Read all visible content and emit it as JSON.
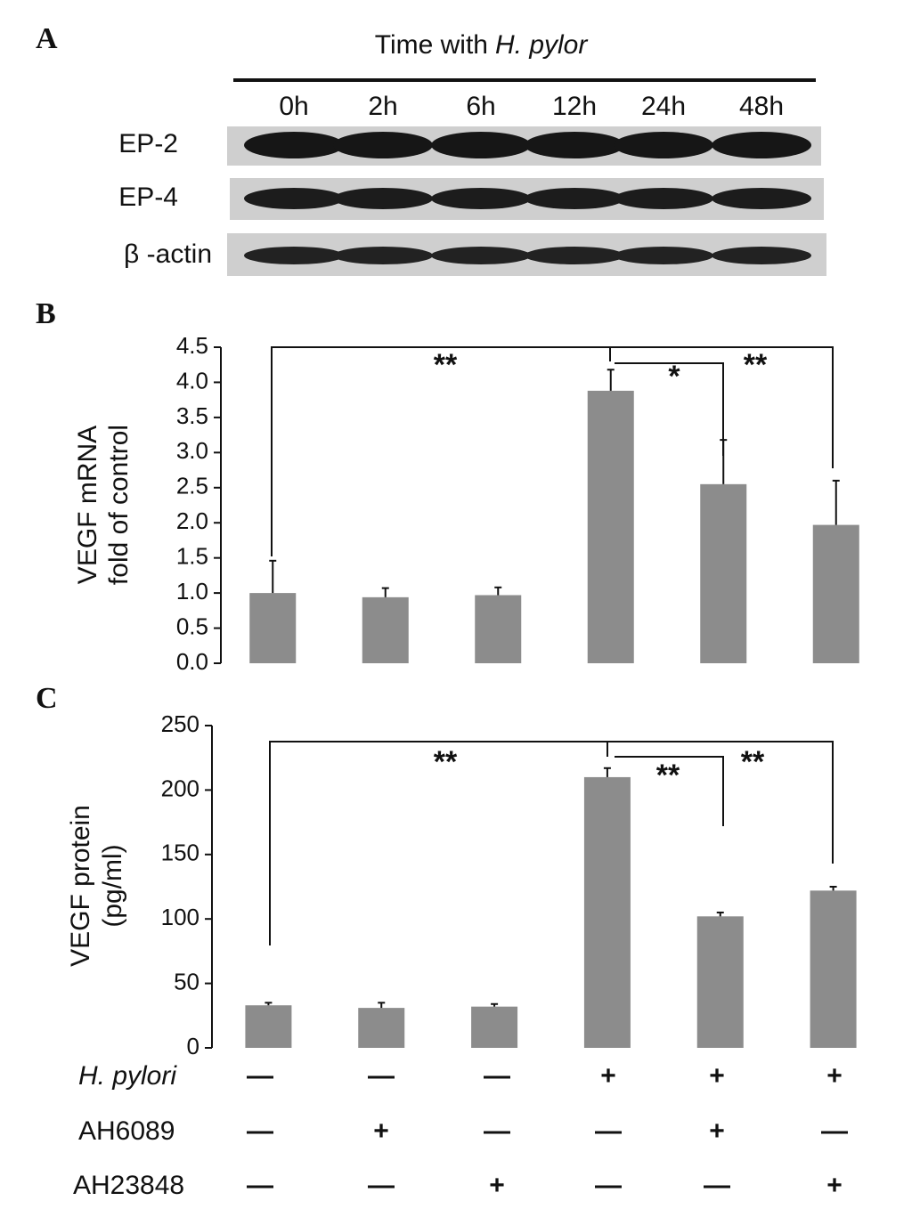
{
  "panel_labels": [
    "A",
    "B",
    "C"
  ],
  "blot": {
    "title_prefix": "Time with",
    "title_italic": "H. pylor",
    "lanes": [
      "0h",
      "2h",
      "6h",
      "12h",
      "24h",
      "48h"
    ],
    "rows": [
      "EP-2",
      "EP-4",
      "β -actin"
    ]
  },
  "chart_data": [
    {
      "type": "bar",
      "ylabel": [
        "VEGF mRNA",
        "fold of control"
      ],
      "color": "#8c8c8c",
      "values": [
        1.0,
        0.94,
        0.97,
        3.88,
        2.55,
        1.97
      ],
      "errors": [
        0.46,
        0.13,
        0.11,
        0.3,
        0.63,
        0.63
      ],
      "ylim": [
        0,
        4.5
      ],
      "yticks": [
        {
          "value": 0,
          "label": "0.0"
        },
        0.5,
        {
          "value": 1,
          "label": "1.0"
        },
        1.5,
        {
          "value": 2,
          "label": "2.0"
        },
        2.5,
        {
          "value": 3,
          "label": "3.0"
        },
        3.5,
        {
          "value": 4,
          "label": "4.0"
        },
        4.5
      ],
      "annotations": [
        "**",
        "*",
        "**"
      ]
    },
    {
      "type": "bar",
      "ylabel": [
        "VEGF protein",
        "(pg/ml)"
      ],
      "color": "#8c8c8c",
      "values": [
        33,
        31,
        32,
        210,
        102,
        122
      ],
      "errors": [
        2,
        4,
        2,
        7,
        3,
        3
      ],
      "ylim": [
        0,
        250
      ],
      "yticks": [
        0,
        50,
        100,
        150,
        200,
        250
      ],
      "annotations": [
        "**",
        "**",
        "**"
      ]
    }
  ],
  "conditions": [
    {
      "label": "H. pylori",
      "italic": true,
      "cells": [
        "—",
        "—",
        "—",
        "+",
        "+",
        "+"
      ]
    },
    {
      "label": "AH6089",
      "italic": false,
      "cells": [
        "—",
        "+",
        "—",
        "—",
        "+",
        "—"
      ]
    },
    {
      "label": "AH23848",
      "italic": false,
      "cells": [
        "—",
        "—",
        "+",
        "—",
        "—",
        "+"
      ]
    }
  ]
}
